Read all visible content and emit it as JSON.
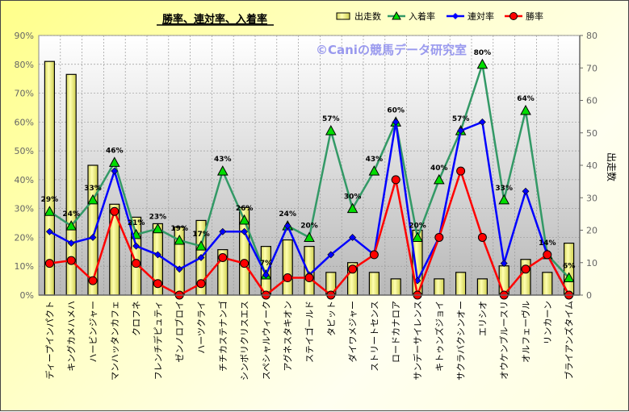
{
  "chart_data": {
    "type": "bar+line",
    "title": "勝率、連対率、入着率",
    "watermark": "©Caniの競馬データ研究室",
    "categories": [
      "ディープインパクト",
      "キングカメハメハ",
      "ハービンジャー",
      "マンハッタンカフェ",
      "クロフネ",
      "フレンチデピュティ",
      "ゼンノロブロイ",
      "ハーツクライ",
      "チチカステナンゴ",
      "シンボリクリスエス",
      "スペシャルウィーク",
      "アグネスタキオン",
      "ステイゴールド",
      "タピット",
      "ダイワメジャー",
      "ストリートセンス",
      "ロードカナロア",
      "サンデーサイレンス",
      "キトゥンズジョイ",
      "サクラバクシンオー",
      "エリシオ",
      "オウケンブルースリ",
      "オルフェーヴル",
      "リンカーン",
      "ブライアンズタイム"
    ],
    "series": [
      {
        "name": "出走数",
        "type": "bar",
        "axis": "right",
        "color": "#f5f58c",
        "values": [
          72,
          68,
          40,
          28,
          24,
          22,
          21,
          23,
          14,
          27,
          15,
          17,
          15,
          7,
          10,
          7,
          5,
          20,
          5,
          7,
          5,
          9,
          11,
          7,
          16
        ]
      },
      {
        "name": "入着率",
        "type": "line",
        "axis": "left",
        "color": "#339966",
        "marker": "triangle",
        "values": [
          29,
          24,
          33,
          46,
          21,
          23,
          19,
          17,
          43,
          26,
          7,
          24,
          20,
          57,
          30,
          43,
          60,
          20,
          40,
          57,
          80,
          33,
          64,
          14,
          6
        ]
      },
      {
        "name": "連対率",
        "type": "line",
        "axis": "left",
        "color": "#0000ff",
        "marker": "diamond",
        "values": [
          22,
          18,
          20,
          43,
          17,
          14,
          9,
          13,
          22,
          22,
          7,
          24,
          7,
          14,
          20,
          14,
          60,
          5,
          20,
          57,
          60,
          11,
          36,
          14,
          0
        ]
      },
      {
        "name": "勝率",
        "type": "line",
        "axis": "left",
        "color": "#ff0000",
        "marker": "circle",
        "values": [
          11,
          12,
          5,
          29,
          11,
          4,
          0,
          4,
          13,
          11,
          0,
          6,
          6,
          0,
          9,
          14,
          40,
          0,
          20,
          43,
          20,
          0,
          9,
          14,
          0
        ]
      }
    ],
    "data_labels": [
      "29%",
      "24%",
      "33%",
      "46%",
      "21%",
      "23%",
      "19%",
      "17%",
      "43%",
      "26%",
      "7%",
      "24%",
      "20%",
      "57%",
      "30%",
      "43%",
      "60%",
      "20%",
      "40%",
      "57%",
      "80%",
      "33%",
      "64%",
      "14%",
      "6%"
    ],
    "left_axis": {
      "ticks": [
        "0%",
        "10%",
        "20%",
        "30%",
        "40%",
        "50%",
        "60%",
        "70%",
        "80%",
        "90%"
      ],
      "range": [
        0,
        90
      ]
    },
    "right_axis": {
      "label": "出走数",
      "ticks": [
        "0",
        "10",
        "20",
        "30",
        "40",
        "50",
        "60",
        "70",
        "80"
      ],
      "range": [
        0,
        80
      ]
    },
    "legend_position": "top-right",
    "grid": true
  }
}
